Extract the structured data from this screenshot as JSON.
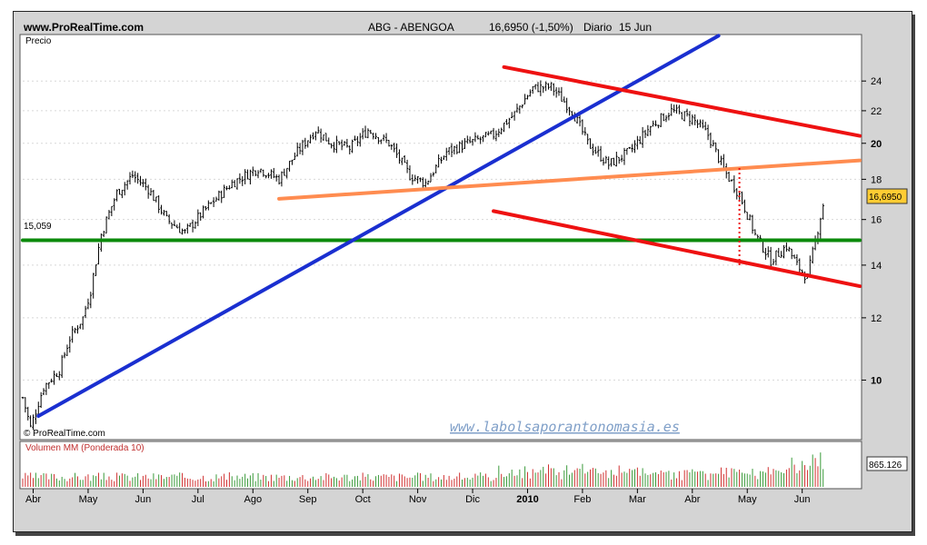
{
  "header": {
    "site": "www.ProRealTime.com",
    "instrument": "ABG - ABENGOA",
    "price_change": "16,6950 (-1,50%)",
    "period": "Diario",
    "date": "15 Jun"
  },
  "labels": {
    "price_axis": "Precio",
    "copyright": "© ProRealTime.com",
    "watermark": "www.labolsaporantonomasia.es",
    "volume_title": "Volumen MM (Ponderada 10)",
    "last_price_tag": "16,6950",
    "last_volume_tag": "865.126",
    "support_label": "15,059"
  },
  "colors": {
    "uptrend": "#1a2fd0",
    "channel": "#ee1111",
    "resistance_orange": "#ff8c50",
    "support_green": "#0b8a0b",
    "candles": "#000000",
    "volume_up": "#3a9a3a",
    "volume_down": "#d03030"
  },
  "chart_data": {
    "type": "line",
    "title": "ABG - ABENGOA 16,6950 (-1,50%) Diario 15 Jun",
    "ylabel": "Precio",
    "yscale": "log",
    "ylim": [
      8.4,
      27.5
    ],
    "y_ticks": [
      10,
      12,
      14,
      16,
      18,
      20,
      22,
      24
    ],
    "x_ticks": [
      "Abr",
      "May",
      "Jun",
      "Jul",
      "Ago",
      "Sep",
      "Oct",
      "Nov",
      "Dic",
      "2010",
      "Feb",
      "Mar",
      "Abr",
      "May",
      "Jun"
    ],
    "x_tick_index": [
      4,
      25,
      46,
      67,
      88,
      109,
      130,
      151,
      172,
      193,
      214,
      235,
      256,
      277,
      298
    ],
    "n_points": 320,
    "price_anchors": [
      [
        0,
        9.5
      ],
      [
        3,
        8.7
      ],
      [
        8,
        9.8
      ],
      [
        14,
        10.3
      ],
      [
        18,
        11.3
      ],
      [
        23,
        12.0
      ],
      [
        26,
        13.0
      ],
      [
        30,
        15.3
      ],
      [
        36,
        17.3
      ],
      [
        42,
        18.2
      ],
      [
        48,
        17.5
      ],
      [
        55,
        16.0
      ],
      [
        62,
        15.4
      ],
      [
        70,
        16.5
      ],
      [
        80,
        17.8
      ],
      [
        90,
        18.6
      ],
      [
        98,
        18.0
      ],
      [
        105,
        19.5
      ],
      [
        112,
        20.8
      ],
      [
        118,
        20.0
      ],
      [
        125,
        19.7
      ],
      [
        132,
        20.8
      ],
      [
        140,
        20.0
      ],
      [
        148,
        18.2
      ],
      [
        154,
        17.8
      ],
      [
        162,
        19.5
      ],
      [
        170,
        20.0
      ],
      [
        180,
        20.5
      ],
      [
        188,
        21.8
      ],
      [
        195,
        23.5
      ],
      [
        202,
        23.6
      ],
      [
        210,
        22.0
      ],
      [
        216,
        20.0
      ],
      [
        224,
        18.8
      ],
      [
        232,
        19.5
      ],
      [
        240,
        21.0
      ],
      [
        248,
        22.0
      ],
      [
        256,
        21.5
      ],
      [
        262,
        20.5
      ],
      [
        268,
        18.5
      ],
      [
        274,
        17.2
      ],
      [
        280,
        15.3
      ],
      [
        286,
        14.2
      ],
      [
        292,
        14.8
      ],
      [
        296,
        14.0
      ],
      [
        300,
        13.5
      ],
      [
        303,
        15.0
      ],
      [
        306,
        16.7
      ]
    ],
    "series": [
      {
        "name": "",
        "kind": "support",
        "points": [
          [
            -2,
            15.059
          ],
          [
            340,
            15.059
          ]
        ]
      },
      {
        "name": "",
        "kind": "uptrend",
        "points": [
          [
            6,
            9.0
          ],
          [
            266,
            27.4
          ]
        ]
      },
      {
        "name": "",
        "kind": "resistance",
        "points": [
          [
            98,
            17.0
          ],
          [
            328,
            19.1
          ]
        ]
      },
      {
        "name": "",
        "kind": "channel-top",
        "points": [
          [
            184,
            25.0
          ],
          [
            328,
            20.2
          ]
        ]
      },
      {
        "name": "",
        "kind": "channel-bottom",
        "points": [
          [
            180,
            16.4
          ],
          [
            328,
            13.0
          ]
        ]
      }
    ],
    "volume": {
      "title": "Volumen MM (Ponderada 10)",
      "last": 865.126
    },
    "annotations": [
      "15,059",
      "16,6950",
      "865.126"
    ]
  }
}
